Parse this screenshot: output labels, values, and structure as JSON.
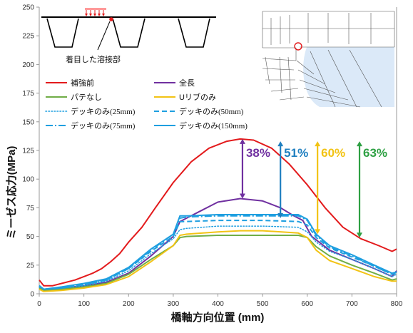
{
  "chart_data": {
    "type": "line",
    "xlabel": "橋軸方向位置 (mm)",
    "ylabel": "ミーゼス応力(MPa)",
    "xlim": [
      0,
      800
    ],
    "ylim": [
      0,
      250
    ],
    "xticks": [
      0,
      100,
      200,
      300,
      400,
      500,
      600,
      700,
      800
    ],
    "yticks": [
      0,
      25,
      50,
      75,
      100,
      125,
      150,
      175,
      200,
      225,
      250
    ],
    "grid": false,
    "legend_position": "top-left",
    "series": [
      {
        "name": "補強前",
        "color": "#e31a1c",
        "dash": "solid",
        "width": 2,
        "x": [
          0,
          10,
          30,
          50,
          80,
          100,
          120,
          140,
          160,
          180,
          200,
          230,
          260,
          300,
          340,
          380,
          420,
          450,
          480,
          520,
          560,
          600,
          640,
          680,
          720,
          760,
          790,
          800
        ],
        "y": [
          12,
          7,
          7,
          9,
          12,
          15,
          18,
          22,
          28,
          35,
          45,
          58,
          75,
          97,
          115,
          127,
          133,
          135,
          134,
          127,
          113,
          95,
          75,
          58,
          48,
          42,
          37,
          39
        ]
      },
      {
        "name": "全長",
        "color": "#7030a0",
        "dash": "solid",
        "width": 2,
        "x": [
          0,
          10,
          50,
          100,
          150,
          200,
          250,
          300,
          315,
          330,
          360,
          400,
          450,
          500,
          540,
          570,
          590,
          610,
          650,
          700,
          750,
          790,
          800
        ],
        "y": [
          6,
          4,
          5,
          7,
          10,
          18,
          33,
          50,
          63,
          66,
          72,
          80,
          83,
          81,
          75,
          68,
          64,
          50,
          38,
          30,
          22,
          15,
          20
        ]
      },
      {
        "name": "パテなし",
        "color": "#70ad47",
        "dash": "solid",
        "width": 2,
        "x": [
          0,
          10,
          50,
          100,
          150,
          200,
          250,
          300,
          315,
          330,
          400,
          450,
          500,
          580,
          600,
          620,
          650,
          700,
          750,
          790,
          800
        ],
        "y": [
          5,
          3,
          4,
          6,
          9,
          17,
          30,
          42,
          49,
          50,
          51,
          51,
          51,
          51,
          49,
          41,
          33,
          25,
          18,
          12,
          13
        ]
      },
      {
        "name": "Uリブのみ",
        "color": "#f2c314",
        "dash": "solid",
        "width": 2,
        "x": [
          0,
          10,
          50,
          100,
          150,
          200,
          250,
          300,
          315,
          330,
          400,
          450,
          500,
          580,
          600,
          620,
          650,
          700,
          750,
          790,
          800
        ],
        "y": [
          4,
          2,
          3,
          5,
          8,
          15,
          28,
          42,
          51,
          52,
          54,
          55,
          55,
          53,
          49,
          38,
          29,
          22,
          15,
          11,
          11
        ]
      },
      {
        "name": "デッキのみ(25mm)",
        "color": "#1f9fe0",
        "dash": "dotted",
        "width": 1.5,
        "x": [
          0,
          10,
          50,
          100,
          150,
          200,
          250,
          300,
          315,
          330,
          400,
          450,
          500,
          580,
          600,
          620,
          650,
          700,
          750,
          790,
          800
        ],
        "y": [
          6,
          4,
          5,
          7,
          11,
          20,
          35,
          48,
          56,
          57,
          59,
          59,
          59,
          58,
          54,
          45,
          37,
          30,
          22,
          15,
          17
        ]
      },
      {
        "name": "デッキのみ(50mm)",
        "color": "#1f9fe0",
        "dash": "dashed",
        "width": 2,
        "x": [
          0,
          10,
          50,
          100,
          150,
          200,
          250,
          300,
          315,
          330,
          400,
          450,
          500,
          580,
          600,
          620,
          650,
          700,
          750,
          790,
          800
        ],
        "y": [
          7,
          4,
          5,
          8,
          12,
          22,
          37,
          50,
          63,
          63,
          64,
          64,
          64,
          63,
          60,
          49,
          40,
          32,
          24,
          17,
          18
        ]
      },
      {
        "name": "デッキのみ(75mm)",
        "color": "#1f9fe0",
        "dash": "dashdot",
        "width": 2,
        "x": [
          0,
          10,
          50,
          100,
          150,
          200,
          250,
          300,
          315,
          330,
          400,
          450,
          500,
          580,
          600,
          620,
          650,
          700,
          750,
          790,
          800
        ],
        "y": [
          7,
          4,
          5,
          8,
          12,
          22,
          38,
          52,
          66,
          67,
          68,
          68,
          68,
          68,
          64,
          51,
          41,
          33,
          24,
          17,
          19
        ]
      },
      {
        "name": "デッキのみ(150mm)",
        "color": "#1f9fe0",
        "dash": "solid",
        "width": 2,
        "x": [
          0,
          10,
          50,
          100,
          150,
          200,
          250,
          300,
          315,
          330,
          400,
          450,
          500,
          580,
          600,
          620,
          650,
          700,
          750,
          790,
          800
        ],
        "y": [
          7,
          4,
          6,
          9,
          13,
          23,
          39,
          52,
          68,
          68,
          69,
          69,
          69,
          69,
          65,
          52,
          42,
          34,
          25,
          18,
          19
        ]
      }
    ],
    "annotations": [
      {
        "text": "38%",
        "color": "#7030a0",
        "x": 455,
        "y_top": 135,
        "y_bottom": 83
      },
      {
        "text": "51%",
        "color": "#1f7fc0",
        "x": 540,
        "y_top": 133,
        "y_bottom": 66
      },
      {
        "text": "60%",
        "color": "#f2c314",
        "x": 623,
        "y_top": 133,
        "y_bottom": 52
      },
      {
        "text": "63%",
        "color": "#2ea043",
        "x": 717,
        "y_top": 133,
        "y_bottom": 49
      }
    ],
    "inset_label": "着目した溶接部"
  }
}
